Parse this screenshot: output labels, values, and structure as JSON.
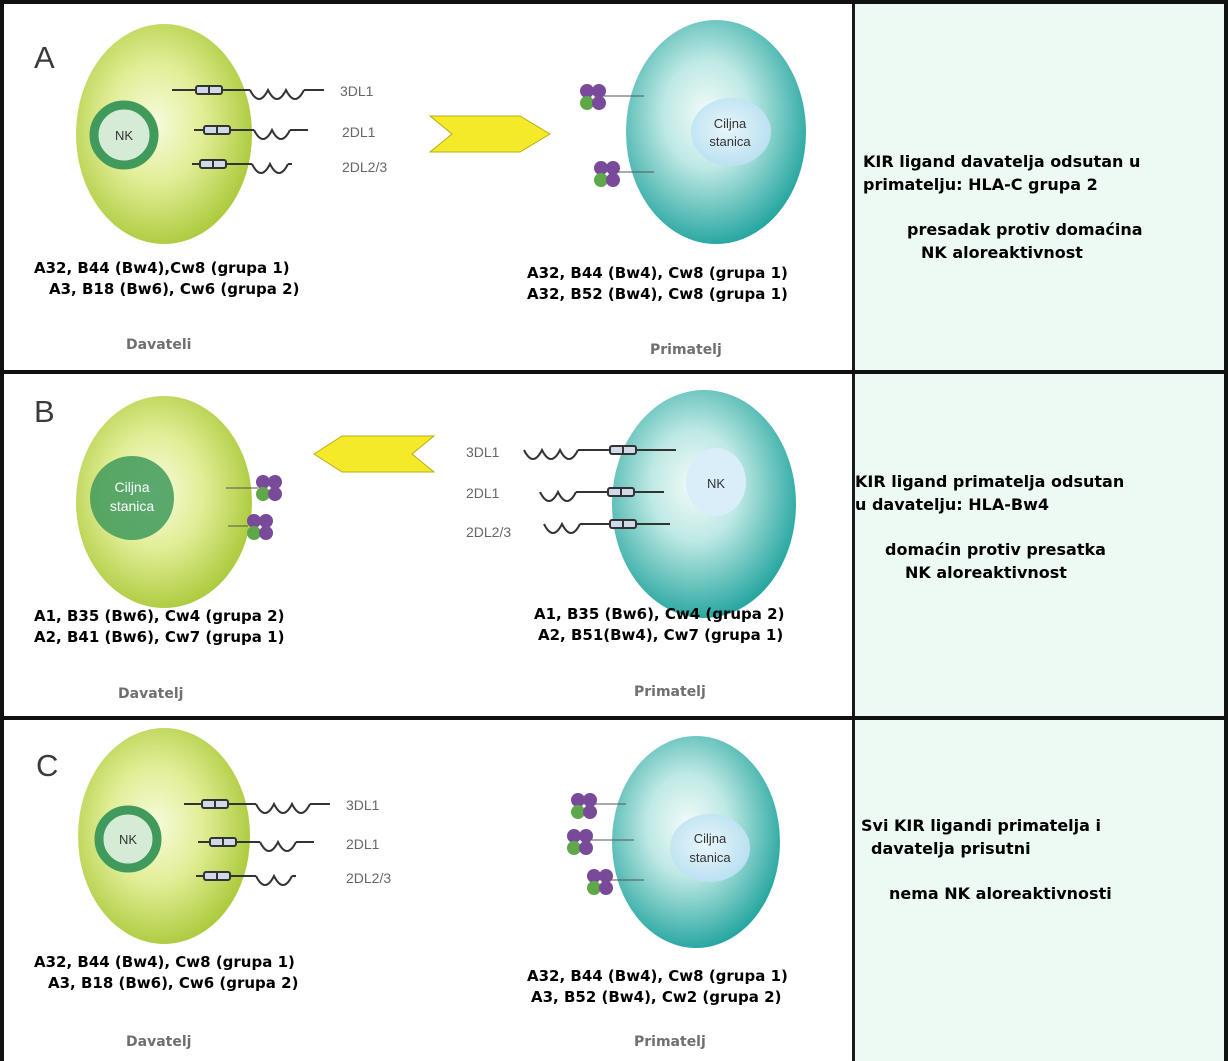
{
  "panels": [
    {
      "letter": "A",
      "nk_label": "NK",
      "target_label_1": "Ciljna",
      "target_label_2": "stanica",
      "kir": [
        "3DL1",
        "2DL1",
        "2DL2/3"
      ],
      "left_hla": [
        "A32, B44 (Bw4),Cw8 (grupa 1)",
        "A3, B18 (Bw6), Cw6 (grupa 2)"
      ],
      "right_hla": [
        "A32, B44 (Bw4), Cw8 (grupa 1)",
        "A32, B52 (Bw4), Cw8 (grupa 1)"
      ],
      "left_role": "Davateli",
      "right_role": "Primatelj",
      "description": {
        "line1": "KIR ligand davatelja odsutan u",
        "line2": "primatelju: HLA-C grupa 2",
        "line3": "presadak protiv domaćina",
        "line4": "NK aloreaktivnost"
      }
    },
    {
      "letter": "B",
      "nk_label": "NK",
      "target_label_1": "Ciljna",
      "target_label_2": "stanica",
      "kir": [
        "3DL1",
        "2DL1",
        "2DL2/3"
      ],
      "left_hla": [
        "A1, B35 (Bw6), Cw4 (grupa 2)",
        "A2, B41 (Bw6), Cw7 (grupa 1)"
      ],
      "right_hla": [
        "A1, B35 (Bw6), Cw4 (grupa 2)",
        "A2, B51(Bw4), Cw7 (grupa 1)"
      ],
      "left_role": "Davatelj",
      "right_role": "Primatelj",
      "description": {
        "line1": "KIR ligand primatelja odsutan",
        "line2": "u davatelju: HLA-Bw4",
        "line3": "domaćin protiv presatka",
        "line4": "NK aloreaktivnost"
      }
    },
    {
      "letter": "C",
      "nk_label": "NK",
      "target_label_1": "Ciljna",
      "target_label_2": "stanica",
      "kir": [
        "3DL1",
        "2DL1",
        "2DL2/3"
      ],
      "left_hla": [
        "A32, B44 (Bw4), Cw8 (grupa 1)",
        "A3, B18 (Bw6), Cw6 (grupa 2)"
      ],
      "right_hla": [
        "A32, B44 (Bw4), Cw8 (grupa 1)",
        "A3, B52 (Bw4), Cw2 (grupa 2)"
      ],
      "left_role": "Davatelj",
      "right_role": "Primatelj",
      "description": {
        "line1": "Svi KIR ligandi primatelja i",
        "line2": "davatelja prisutni",
        "line3": "nema NK aloreaktivnosti"
      }
    }
  ],
  "colors": {
    "nk_cell_light": "#e4ef9a",
    "nk_cell_dark": "#a9c93a",
    "nk_nucleus": "#3f9a5c",
    "target_cell_light": "#dff4f1",
    "target_cell_dark": "#2aa9a3",
    "arrow_fill": "#f5ea2a",
    "ligand_purple": "#7a4a9a",
    "ligand_green": "#5fa84a"
  }
}
